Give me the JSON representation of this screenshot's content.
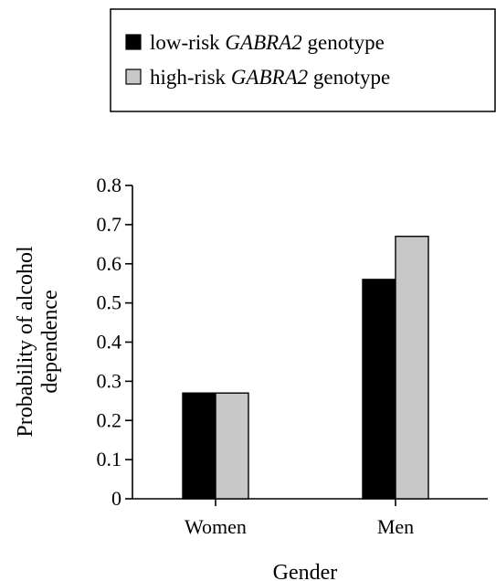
{
  "chart_data": {
    "type": "bar",
    "categories": [
      "Women",
      "Men"
    ],
    "series": [
      {
        "name_prefix": "low-risk ",
        "name_gene": "GABRA2",
        "name_suffix": " genotype",
        "color": "#000000",
        "values": [
          0.27,
          0.56
        ]
      },
      {
        "name_prefix": "high-risk ",
        "name_gene": "GABRA2",
        "name_suffix": " genotype",
        "color": "#c8c8c8",
        "values": [
          0.27,
          0.67
        ]
      }
    ],
    "xlabel": "Gender",
    "ylabel_line1": "Probability of alcohol",
    "ylabel_line2": "dependence",
    "ylim": [
      0,
      0.8
    ],
    "yticks": [
      "0",
      "0.1",
      "0.2",
      "0.3",
      "0.4",
      "0.5",
      "0.6",
      "0.7",
      "0.8"
    ],
    "legend_position": "top",
    "grid": false
  }
}
